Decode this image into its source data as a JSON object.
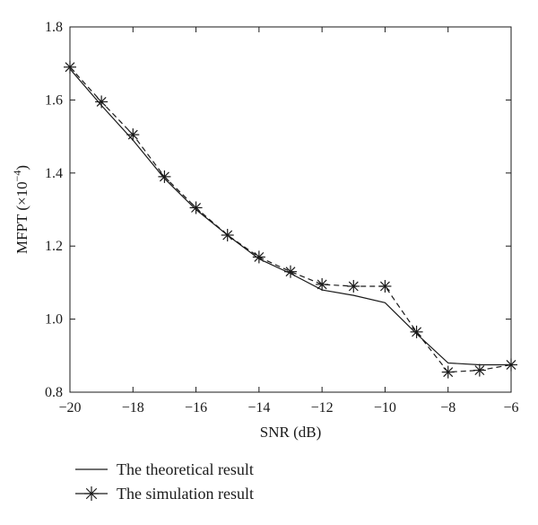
{
  "chart_data": {
    "type": "line",
    "title": "",
    "xlabel": "SNR (dB)",
    "ylabel": "MFPT (×10",
    "ylabel_exp": "−4",
    "ylabel_close": ")",
    "xlim": [
      -20,
      -6
    ],
    "ylim": [
      0.8,
      1.8
    ],
    "xticks": [
      -20,
      -18,
      -16,
      -14,
      -12,
      -10,
      -8,
      -6
    ],
    "xtick_labels": [
      "−20",
      "−18",
      "−16",
      "−14",
      "−12",
      "−10",
      "−8",
      "−6"
    ],
    "yticks": [
      0.8,
      1.0,
      1.2,
      1.4,
      1.6,
      1.8
    ],
    "ytick_labels": [
      "0.8",
      "1.0",
      "1.2",
      "1.4",
      "1.6",
      "1.8"
    ],
    "grid": false,
    "legend_position": "bottom-left, below plot",
    "series": [
      {
        "name": "The theoretical result",
        "style": "solid",
        "marker": "none",
        "color": "#1a1a1a",
        "x": [
          -20,
          -19,
          -18,
          -17,
          -16,
          -15,
          -14,
          -13,
          -12,
          -11,
          -10,
          -9,
          -8,
          -7,
          -6
        ],
        "y": [
          1.685,
          1.585,
          1.49,
          1.385,
          1.3,
          1.23,
          1.165,
          1.125,
          1.08,
          1.065,
          1.045,
          0.96,
          0.88,
          0.875,
          0.875
        ]
      },
      {
        "name": "The simulation result",
        "style": "dashed",
        "marker": "asterisk",
        "color": "#1a1a1a",
        "x": [
          -20,
          -19,
          -18,
          -17,
          -16,
          -15,
          -14,
          -13,
          -12,
          -11,
          -10,
          -9,
          -8,
          -7,
          -6
        ],
        "y": [
          1.69,
          1.595,
          1.505,
          1.39,
          1.305,
          1.23,
          1.17,
          1.13,
          1.095,
          1.09,
          1.09,
          0.965,
          0.855,
          0.86,
          0.875
        ]
      }
    ]
  }
}
